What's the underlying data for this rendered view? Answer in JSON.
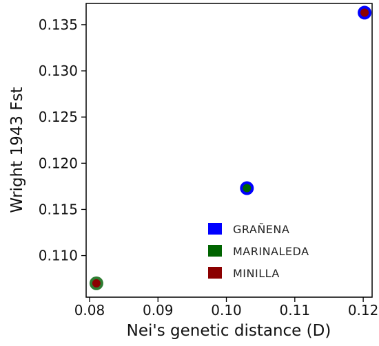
{
  "chart_data": {
    "type": "scatter",
    "title": "",
    "xlabel": "Nei's genetic distance (D)",
    "ylabel": "Wright 1943 Fst",
    "xlim": [
      0.0795,
      0.1213
    ],
    "ylim": [
      0.1055,
      0.1373
    ],
    "x_ticks": [
      0.08,
      0.09,
      0.1,
      0.11,
      0.12
    ],
    "x_tick_labels": [
      "0.08",
      "0.09",
      "0.10",
      "0.11",
      "0.12"
    ],
    "y_ticks": [
      0.11,
      0.115,
      0.12,
      0.125,
      0.13,
      0.135
    ],
    "y_tick_labels": [
      "0.110",
      "0.115",
      "0.120",
      "0.125",
      "0.130",
      "0.135"
    ],
    "grid": false,
    "legend_position": "lower-right",
    "legend": [
      {
        "label": "GRAÑENA",
        "color": "#0000ff"
      },
      {
        "label": "MARINALEDA",
        "color": "#006400"
      },
      {
        "label": "MINILLA",
        "color": "#8b0000"
      }
    ],
    "points": [
      {
        "x": 0.081,
        "y": 0.107,
        "outer_color": "#2e7d32",
        "inner_color": "#8b0000"
      },
      {
        "x": 0.103,
        "y": 0.1173,
        "outer_color": "#0000ff",
        "inner_color": "#006400"
      },
      {
        "x": 0.1202,
        "y": 0.1363,
        "outer_color": "#0000ff",
        "inner_color": "#8b0000"
      }
    ]
  }
}
